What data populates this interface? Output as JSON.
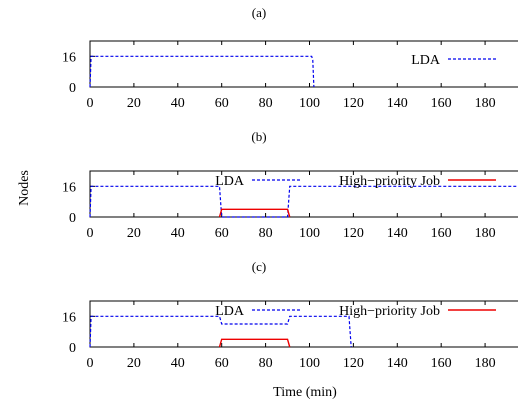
{
  "figure": {
    "ylabel": "Nodes",
    "xlabel": "Time (min)"
  },
  "chart_data": [
    {
      "type": "line",
      "panel_label": "(a)",
      "xlim": [
        0,
        195
      ],
      "ylim": [
        0,
        24
      ],
      "xticks": [
        0,
        20,
        40,
        60,
        80,
        100,
        120,
        140,
        160,
        180
      ],
      "yticks": [
        0,
        16
      ],
      "legend": "top-right",
      "series": [
        {
          "name": "LDA",
          "color": "#0000ee",
          "style": "dashed",
          "x": [
            0,
            0.5,
            101,
            101.5,
            102
          ],
          "y": [
            0,
            16,
            16,
            14,
            0
          ]
        }
      ]
    },
    {
      "type": "line",
      "panel_label": "(b)",
      "xlim": [
        0,
        195
      ],
      "ylim": [
        0,
        24
      ],
      "xticks": [
        0,
        20,
        40,
        60,
        80,
        100,
        120,
        140,
        160,
        180
      ],
      "yticks": [
        0,
        16
      ],
      "legend": "top",
      "series": [
        {
          "name": "LDA",
          "color": "#0000ee",
          "style": "dashed",
          "x": [
            0,
            0.5,
            59,
            60,
            90,
            91,
            195
          ],
          "y": [
            0,
            16,
            16,
            0,
            0,
            16,
            16
          ]
        },
        {
          "name": "High−priority Job",
          "color": "#ee0000",
          "style": "solid",
          "x": [
            59,
            60,
            90,
            91
          ],
          "y": [
            0,
            4,
            4,
            0
          ]
        }
      ]
    },
    {
      "type": "line",
      "panel_label": "(c)",
      "xlim": [
        0,
        195
      ],
      "ylim": [
        0,
        24
      ],
      "xticks": [
        0,
        20,
        40,
        60,
        80,
        100,
        120,
        140,
        160,
        180
      ],
      "yticks": [
        0,
        16
      ],
      "legend": "top",
      "series": [
        {
          "name": "LDA",
          "color": "#0000ee",
          "style": "dashed",
          "x": [
            0,
            0.5,
            59,
            60,
            90,
            91,
            118,
            119
          ],
          "y": [
            0,
            16,
            16,
            12,
            12,
            16,
            16,
            0
          ]
        },
        {
          "name": "High−priority Job",
          "color": "#ee0000",
          "style": "solid",
          "x": [
            59,
            60,
            90,
            91
          ],
          "y": [
            0,
            4,
            4,
            0
          ]
        }
      ]
    }
  ]
}
